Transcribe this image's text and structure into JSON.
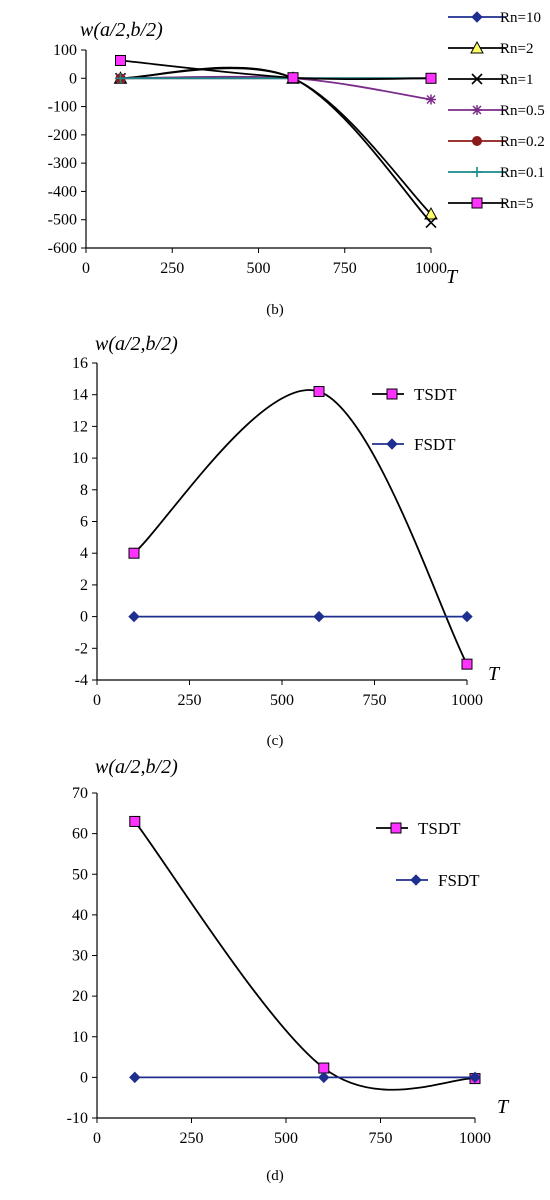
{
  "chart_data": [
    {
      "type": "line",
      "panel": "b",
      "caption": "(b)",
      "ylabel": "w(a/2,b/2)",
      "xlabel": "T",
      "xlim": [
        0,
        1000
      ],
      "ylim": [
        -600,
        100
      ],
      "xticks": [
        0,
        250,
        500,
        750,
        1000
      ],
      "yticks": [
        100,
        0,
        -100,
        -200,
        -300,
        -400,
        -500,
        -600
      ],
      "x": [
        100,
        600,
        1000
      ],
      "legend_position": "right",
      "series": [
        {
          "name": "Rn=10",
          "values": [
            0,
            0,
            0
          ],
          "color": "#1f2f8f",
          "marker": "diamond"
        },
        {
          "name": "Rn=2",
          "values": [
            0,
            0,
            -480
          ],
          "color": "#000000",
          "marker": "triangle"
        },
        {
          "name": "Rn=1",
          "values": [
            0,
            0,
            -510
          ],
          "color": "#000000",
          "marker": "x"
        },
        {
          "name": "Rn=0.5",
          "values": [
            0,
            0,
            -75
          ],
          "color": "#7b2c8a",
          "marker": "star"
        },
        {
          "name": "Rn=0.2",
          "values": [
            0,
            0,
            0
          ],
          "color": "#8b1a1a",
          "marker": "circle"
        },
        {
          "name": "Rn=0.1",
          "values": [
            0,
            0,
            0
          ],
          "color": "#1a8a8a",
          "marker": "plus"
        },
        {
          "name": "Rn=5",
          "values": [
            63,
            2,
            0
          ],
          "color": "#000000",
          "marker": "square"
        }
      ]
    },
    {
      "type": "line",
      "panel": "c",
      "caption": "(c)",
      "ylabel": "w(a/2,b/2)",
      "xlabel": "T",
      "xlim": [
        0,
        1000
      ],
      "ylim": [
        -4,
        16
      ],
      "xticks": [
        0,
        250,
        500,
        750,
        1000
      ],
      "yticks": [
        16,
        14,
        12,
        10,
        8,
        6,
        4,
        2,
        0,
        -2,
        -4
      ],
      "x": [
        100,
        600,
        1000
      ],
      "legend_position": "right",
      "series": [
        {
          "name": "TSDT",
          "values": [
            4,
            14.2,
            -3
          ],
          "color": "#000000",
          "marker": "square"
        },
        {
          "name": "FSDT",
          "values": [
            0,
            0,
            0
          ],
          "color": "#1f2f8f",
          "marker": "diamond"
        }
      ]
    },
    {
      "type": "line",
      "panel": "d",
      "caption": "(d)",
      "ylabel": "w(a/2,b/2)",
      "xlabel": "T",
      "xlim": [
        0,
        1000
      ],
      "ylim": [
        -10,
        70
      ],
      "xticks": [
        0,
        250,
        500,
        750,
        1000
      ],
      "yticks": [
        70,
        60,
        50,
        40,
        30,
        20,
        10,
        0,
        -10
      ],
      "x": [
        100,
        600,
        1000
      ],
      "legend_position": "right",
      "series": [
        {
          "name": "TSDT",
          "values": [
            63,
            2.3,
            -0.3
          ],
          "color": "#000000",
          "marker": "square"
        },
        {
          "name": "FSDT",
          "values": [
            0,
            0,
            0
          ],
          "color": "#1f2f8f",
          "marker": "diamond"
        }
      ]
    }
  ],
  "colors": {
    "marker_square_fill": "#ff33ff",
    "axis": "#000000"
  }
}
